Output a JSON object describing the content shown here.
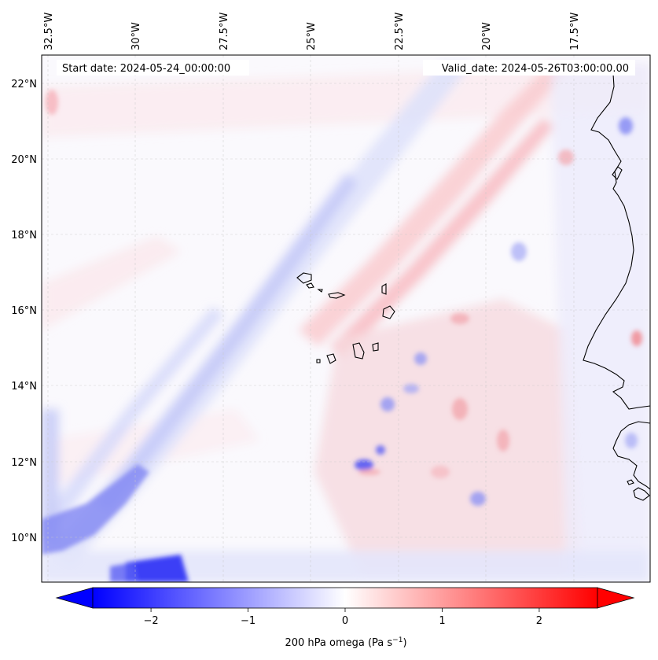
{
  "map": {
    "projection_note": "",
    "lon_labels": [
      "32.5°W",
      "30°W",
      "27.5°W",
      "25°W",
      "22.5°W",
      "20°W",
      "17.5°W"
    ],
    "lat_labels": [
      "22°N",
      "20°N",
      "18°N",
      "16°N",
      "14°N",
      "12°N",
      "10°N"
    ],
    "start_date": "Start date: 2024-05-24_00:00:00",
    "valid_date": "Valid_date: 2024-05-26T03:00:00.00"
  },
  "colorbar": {
    "ticks": [
      "−2",
      "−1",
      "0",
      "1",
      "2"
    ],
    "tick_values": [
      -2,
      -1,
      0,
      1,
      2
    ],
    "range": [
      -2.6,
      2.6
    ],
    "label_main": "200 hPa omega (Pa s",
    "label_sup": "−1",
    "label_end": ")",
    "colormap": "bwr",
    "negative_color": "#0000ff",
    "zero_color": "#ffffff",
    "positive_color": "#ff0000"
  }
}
